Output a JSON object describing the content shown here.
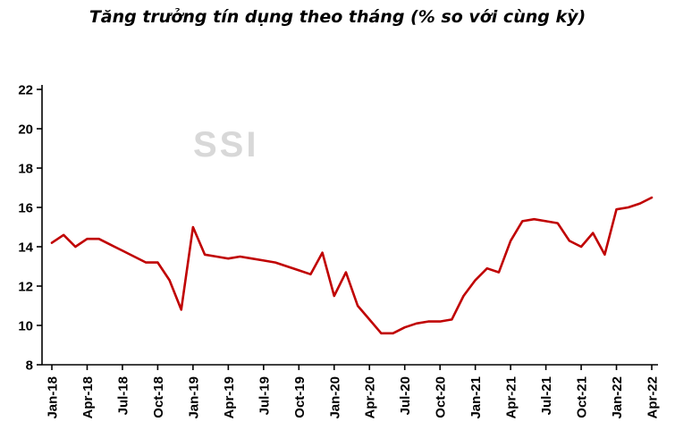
{
  "chart_data": {
    "type": "line",
    "title": "Tăng trưởng tín dụng theo tháng (% so với cùng kỳ)",
    "watermark": "SSI",
    "xlabel": "",
    "ylabel": "",
    "ylim": [
      8,
      22
    ],
    "yticks": [
      8,
      10,
      12,
      14,
      16,
      18,
      20,
      22
    ],
    "x_tick_step": 3,
    "grid": false,
    "legend": "none",
    "line_color": "#C00000",
    "axis_color": "#000000",
    "x": [
      "Jan-18",
      "Feb-18",
      "Mar-18",
      "Apr-18",
      "May-18",
      "Jun-18",
      "Jul-18",
      "Aug-18",
      "Sep-18",
      "Oct-18",
      "Nov-18",
      "Dec-18",
      "Jan-19",
      "Feb-19",
      "Mar-19",
      "Apr-19",
      "May-19",
      "Jun-19",
      "Jul-19",
      "Aug-19",
      "Sep-19",
      "Oct-19",
      "Nov-19",
      "Dec-19",
      "Jan-20",
      "Feb-20",
      "Mar-20",
      "Apr-20",
      "May-20",
      "Jun-20",
      "Jul-20",
      "Aug-20",
      "Sep-20",
      "Oct-20",
      "Nov-20",
      "Dec-20",
      "Jan-21",
      "Feb-21",
      "Mar-21",
      "Apr-21",
      "May-21",
      "Jun-21",
      "Jul-21",
      "Aug-21",
      "Sep-21",
      "Oct-21",
      "Nov-21",
      "Dec-21",
      "Jan-22",
      "Feb-22",
      "Mar-22",
      "Apr-22"
    ],
    "values": [
      14.2,
      14.6,
      14.0,
      14.4,
      14.4,
      14.1,
      13.8,
      13.5,
      13.2,
      13.2,
      12.3,
      10.8,
      15.0,
      13.6,
      13.5,
      13.4,
      13.5,
      13.4,
      13.3,
      13.2,
      13.0,
      12.8,
      12.6,
      13.7,
      11.5,
      12.7,
      11.0,
      10.3,
      9.6,
      9.6,
      9.9,
      10.1,
      10.2,
      10.2,
      10.3,
      11.5,
      12.3,
      12.9,
      12.7,
      14.3,
      15.3,
      15.4,
      15.3,
      15.2,
      14.3,
      14.0,
      14.7,
      13.6,
      15.9,
      16.0,
      16.2,
      16.5
    ]
  }
}
